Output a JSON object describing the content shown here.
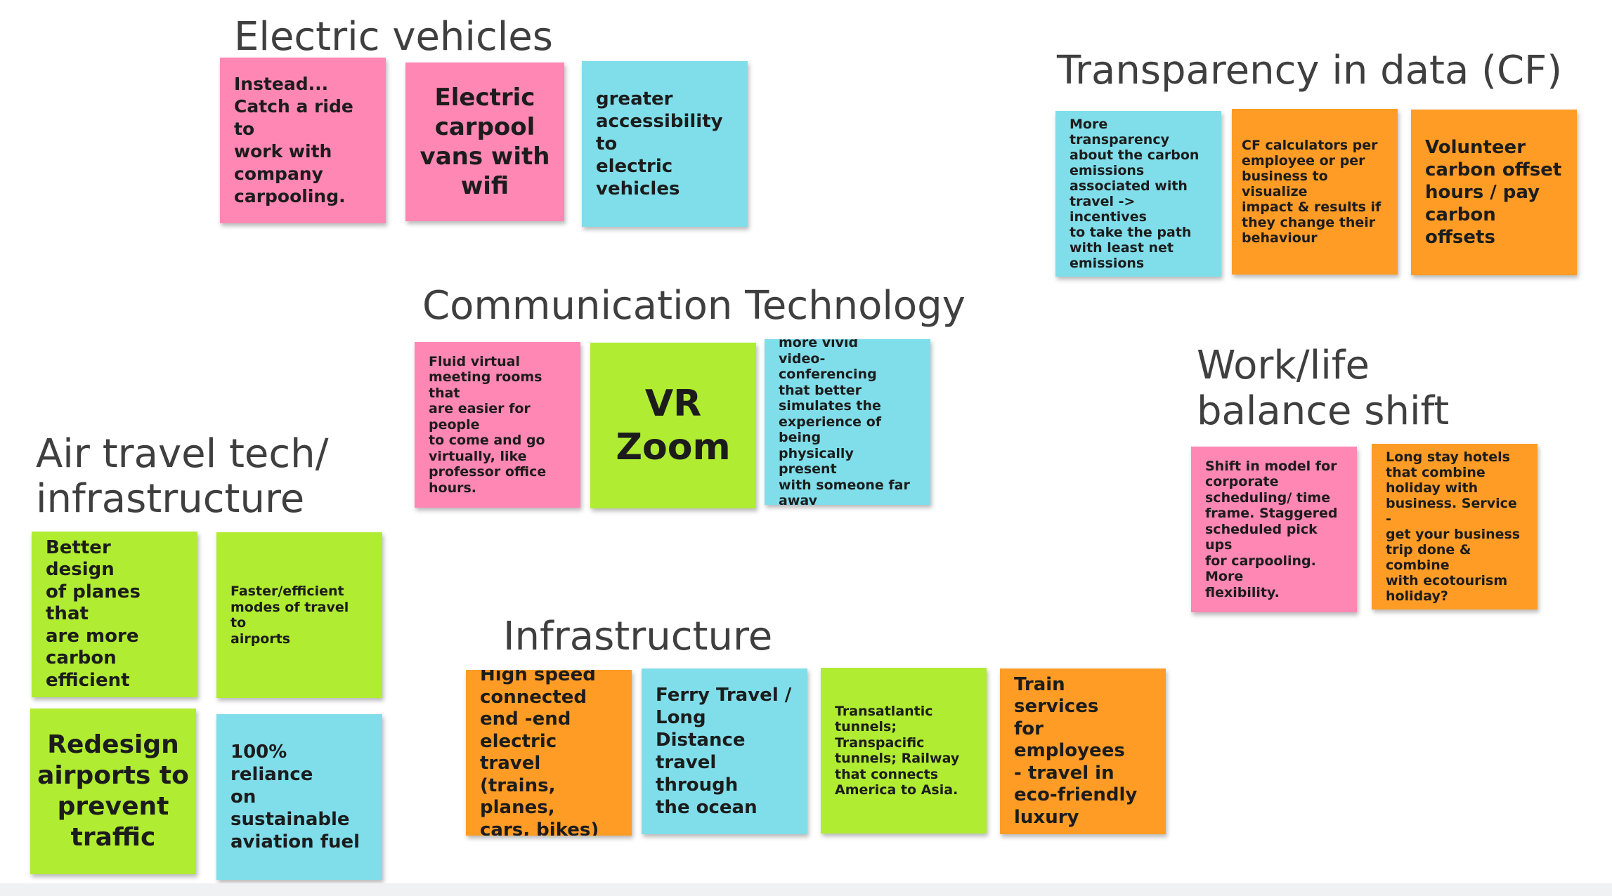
{
  "headings": {
    "electric": "Electric vehicles",
    "transparency": "Transparency in data (CF)",
    "communication": "Communication Technology",
    "worklife_line1": "Work/life",
    "worklife_line2": "balance shift",
    "airtravel_line1": "Air travel tech/",
    "airtravel_line2": "infrastructure",
    "infrastructure": "Infrastructure"
  },
  "notes": {
    "ev_carpool": "Instead...\nCatch a ride to\nwork with\ncompany\ncarpooling.",
    "ev_vans": "Electric\ncarpool\nvans with\nwifi",
    "ev_access": "greater\naccessibility to\nelectric\nvehicles",
    "tr_more": "More transparency\nabout the carbon\nemissions\nassociated with\ntravel -> incentives\nto take the path\nwith least net\nemissions",
    "tr_calc": "CF calculators per\nemployee or per\nbusiness to visualize\nimpact & results if\nthey change their\nbehaviour",
    "tr_volunteer": "Volunteer\ncarbon offset\nhours / pay\ncarbon offsets",
    "ct_fluid": "Fluid virtual\nmeeting rooms that\nare easier for people\nto come and go\nvirtually, like\nprofessor office\nhours.",
    "ct_vr": "VR\nZoom",
    "ct_vivid": "more vivid\nvideo-conferencing\nthat better\nsimulates the\nexperience of being\nphysically present\nwith someone far\naway",
    "wl_shift": "Shift in model for\ncorporate\nscheduling/ time\nframe. Staggered\nscheduled pick ups\nfor carpooling. More\nflexibility.",
    "wl_hotels": "Long stay hotels\nthat combine\nholiday with\nbusiness. Service -\nget your business\ntrip done & combine\nwith ecotourism\nholiday?",
    "at_design": "Better design\nof planes that\nare more\ncarbon\nefficient",
    "at_faster": "Faster/efficient\nmodes of travel to\nairports",
    "at_redesign": "Redesign\nairports to\nprevent\ntraffic",
    "at_fuel": "100% reliance\non sustainable\naviation fuel",
    "in_highspeed": "High speed\nconnected\nend -end\nelectric travel\n(trains, planes,\ncars, bikes)",
    "in_ferry": "Ferry Travel /\nLong Distance\ntravel through\nthe ocean",
    "in_tunnels": "Transatlantic\ntunnels;\nTranspacific\ntunnels; Railway\nthat connects\nAmerica to Asia.",
    "in_train": "Train services\nfor employees\n- travel in\neco-friendly\nluxury"
  },
  "colors": {
    "pink": "#ff87b4",
    "blue": "#80deea",
    "orange": "#ff9c26",
    "green": "#b0ec32"
  }
}
